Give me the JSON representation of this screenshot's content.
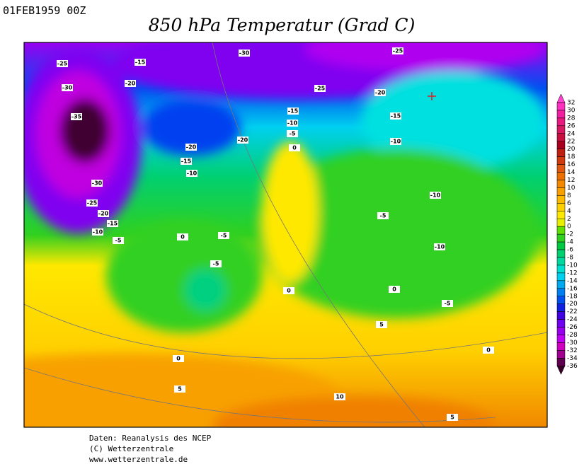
{
  "header": {
    "date": "01FEB1959 00Z",
    "title": "850 hPa Temperatur (Grad C)"
  },
  "legend": {
    "levels": [
      32,
      30,
      28,
      26,
      24,
      22,
      20,
      18,
      16,
      14,
      12,
      10,
      8,
      6,
      4,
      2,
      0,
      -2,
      -4,
      -6,
      -8,
      -10,
      -12,
      -14,
      -16,
      -18,
      -20,
      -22,
      -24,
      -26,
      -28,
      -30,
      -32,
      -34,
      -36
    ],
    "colors": [
      "#ff40d0",
      "#ff30c0",
      "#f020a0",
      "#e81a80",
      "#d81860",
      "#c81040",
      "#a80020",
      "#c02010",
      "#d03c10",
      "#e05810",
      "#ec7000",
      "#f48800",
      "#f8a000",
      "#ffb800",
      "#ffd000",
      "#ffe800",
      "#e8f000",
      "#60e000",
      "#30d020",
      "#00c840",
      "#00d070",
      "#00d8a0",
      "#00e0d0",
      "#00d0f0",
      "#00a8f0",
      "#0080f0",
      "#0050f0",
      "#1020e0",
      "#4000e0",
      "#7000f0",
      "#9800f0",
      "#c000f0",
      "#d000c0",
      "#a00090",
      "#600050",
      "#380028"
    ]
  },
  "map": {
    "contour_labels": [
      -25,
      -30,
      -35,
      -30,
      -25,
      -20,
      -15,
      -10,
      -5,
      -15,
      -20,
      -30,
      -25,
      -25,
      -20,
      -15,
      -10,
      -5,
      0,
      -15,
      -10,
      -20,
      -20,
      -15,
      -10,
      -10,
      -5,
      -10,
      0,
      -5,
      -5,
      0,
      0,
      -5,
      5,
      0,
      0,
      5,
      10,
      5
    ]
  },
  "footer": {
    "lines": [
      "Daten: Reanalysis des NCEP",
      "(C) Wetterzentrale",
      "www.wetterzentrale.de"
    ]
  }
}
